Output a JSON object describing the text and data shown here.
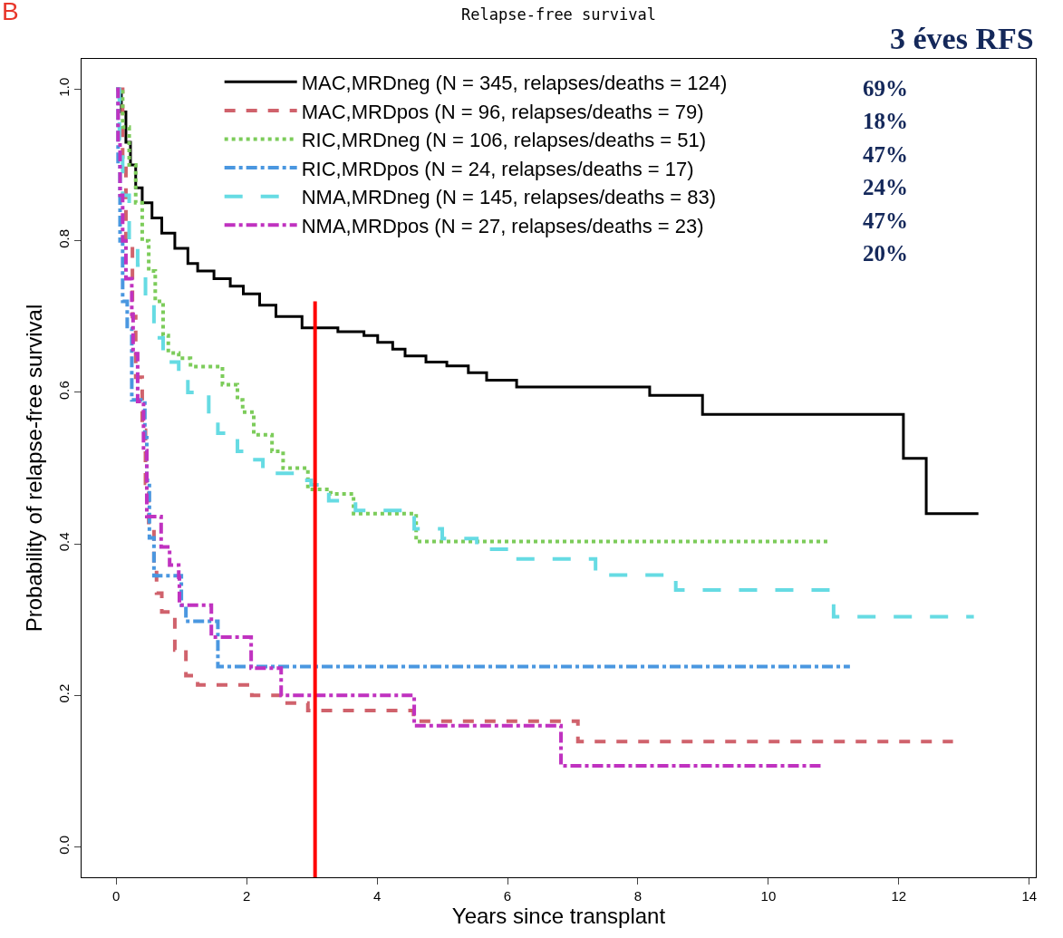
{
  "chart_data": {
    "type": "step",
    "title": "Relapse-free survival",
    "xlabel": "Years since transplant",
    "ylabel": "Probability of relapse-free survival",
    "annotations": [
      "B",
      "3 éves RFS",
      "69%",
      "18%",
      "47%",
      "24%",
      "47%",
      "20%"
    ],
    "series": [
      {
        "name": "MAC,MRDneg (N = 345, relapses/deaths = 124)",
        "color": "#000000",
        "line_style": "solid",
        "x": [
          0,
          0.08,
          0.15,
          0.22,
          0.3,
          0.4,
          0.55,
          0.7,
          0.9,
          1.1,
          1.25,
          1.5,
          1.75,
          1.95,
          2.2,
          2.45,
          2.85,
          3.4,
          3.8,
          4.01,
          4.24,
          4.43,
          4.75,
          5.07,
          5.4,
          5.68,
          6.14,
          8.18,
          8.99,
          12.07,
          12.42,
          13.22
        ],
        "values": [
          1,
          0.97,
          0.93,
          0.9,
          0.87,
          0.85,
          0.83,
          0.81,
          0.79,
          0.77,
          0.76,
          0.75,
          0.74,
          0.73,
          0.715,
          0.7,
          0.685,
          0.68,
          0.675,
          0.666,
          0.657,
          0.648,
          0.64,
          0.635,
          0.626,
          0.616,
          0.607,
          0.596,
          0.571,
          0.513,
          0.44,
          0.44
        ]
      },
      {
        "name": "MAC,MRDpos (N = 96, relapses/deaths = 79)",
        "color": "#d0626c",
        "line_style": "dashed",
        "x": [
          0,
          0.1,
          0.15,
          0.25,
          0.3,
          0.4,
          0.45,
          0.5,
          0.58,
          0.62,
          0.7,
          0.9,
          1.07,
          1.25,
          2.08,
          2.53,
          2.94,
          4.56,
          7.08,
          12.83
        ],
        "values": [
          1,
          0.9,
          0.8,
          0.7,
          0.62,
          0.55,
          0.48,
          0.42,
          0.375,
          0.335,
          0.31,
          0.26,
          0.226,
          0.214,
          0.2,
          0.19,
          0.18,
          0.166,
          0.139,
          0.139
        ]
      },
      {
        "name": "RIC,MRDneg (N = 106, relapses/deaths = 51)",
        "color": "#7ccc5a",
        "line_style": "dotted",
        "x": [
          0,
          0.1,
          0.2,
          0.3,
          0.4,
          0.5,
          0.6,
          0.72,
          0.8,
          0.96,
          1.14,
          1.63,
          1.86,
          1.94,
          2.11,
          2.39,
          2.56,
          2.94,
          3.29,
          3.64,
          4.6,
          10.92
        ],
        "values": [
          1,
          0.95,
          0.9,
          0.85,
          0.8,
          0.76,
          0.72,
          0.675,
          0.652,
          0.645,
          0.634,
          0.61,
          0.59,
          0.574,
          0.544,
          0.522,
          0.5,
          0.472,
          0.466,
          0.44,
          0.403,
          0.403
        ]
      },
      {
        "name": "RIC,MRDpos (N = 24, relapses/deaths = 17)",
        "color": "#4a97e0",
        "line_style": "dashdot",
        "x": [
          0,
          0.03,
          0.06,
          0.1,
          0.17,
          0.24,
          0.44,
          0.47,
          0.51,
          0.58,
          1.0,
          1.07,
          1.56,
          11.25
        ],
        "values": [
          1,
          0.9,
          0.8,
          0.72,
          0.684,
          0.59,
          0.54,
          0.484,
          0.408,
          0.358,
          0.319,
          0.298,
          0.238,
          0.238
        ]
      },
      {
        "name": "NMA,MRDneg (N = 145, relapses/deaths = 83)",
        "color": "#66dbe3",
        "line_style": "longdash",
        "x": [
          0,
          0.05,
          0.1,
          0.2,
          0.33,
          0.45,
          0.58,
          0.72,
          0.96,
          1.1,
          1.42,
          1.56,
          1.74,
          1.86,
          2.0,
          2.25,
          2.76,
          2.99,
          3.26,
          3.67,
          4.57,
          5.0,
          5.53,
          6.03,
          7.35,
          8.58,
          11.0,
          13.15
        ],
        "values": [
          1,
          0.93,
          0.86,
          0.8,
          0.768,
          0.72,
          0.672,
          0.64,
          0.624,
          0.6,
          0.571,
          0.546,
          0.54,
          0.522,
          0.511,
          0.493,
          0.484,
          0.478,
          0.457,
          0.444,
          0.42,
          0.407,
          0.393,
          0.38,
          0.359,
          0.339,
          0.304,
          0.304
        ]
      },
      {
        "name": "NMA,MRDpos (N = 27, relapses/deaths = 23)",
        "color": "#c032c0",
        "line_style": "dashdot",
        "x": [
          0,
          0.03,
          0.06,
          0.1,
          0.15,
          0.24,
          0.26,
          0.33,
          0.42,
          0.47,
          0.69,
          0.82,
          0.96,
          0.97,
          1.46,
          2.07,
          2.53,
          4.57,
          6.82,
          10.8
        ],
        "values": [
          1,
          0.93,
          0.86,
          0.8,
          0.75,
          0.703,
          0.651,
          0.588,
          0.523,
          0.436,
          0.396,
          0.372,
          0.356,
          0.319,
          0.277,
          0.236,
          0.2,
          0.16,
          0.107,
          0.107
        ]
      },
      {
        "type": "line",
        "color": "#ff0000",
        "line_style": "solid",
        "x": [
          3.05,
          3.05
        ],
        "values": [
          -0.04,
          0.72
        ]
      }
    ],
    "xlim": [
      -0.53,
      14.1
    ],
    "xticks": [
      0,
      2,
      4,
      6,
      8,
      10,
      12,
      14
    ],
    "ylim": [
      -0.04,
      1.04
    ],
    "yticks": [
      {
        "value": 0,
        "label": "0.0"
      },
      {
        "value": 0.2,
        "label": "0.2"
      },
      {
        "value": 0.4,
        "label": "0.4"
      },
      {
        "value": 0.6,
        "label": "0.6"
      },
      {
        "value": 0.8,
        "label": "0.8"
      },
      {
        "value": 1,
        "label": "1.0"
      }
    ],
    "grid": false,
    "legend": "top",
    "marker": "none"
  }
}
